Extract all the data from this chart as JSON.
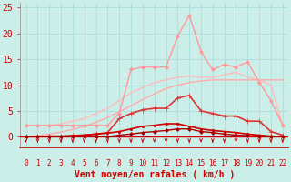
{
  "x": [
    0,
    1,
    2,
    3,
    4,
    5,
    6,
    7,
    8,
    9,
    10,
    11,
    12,
    13,
    14,
    15,
    16,
    17,
    18,
    19,
    20,
    21,
    22
  ],
  "lines": [
    {
      "y": [
        2.2,
        2.2,
        2.2,
        2.5,
        3.0,
        3.5,
        4.5,
        5.5,
        7.0,
        8.5,
        9.5,
        10.5,
        11.0,
        11.5,
        11.8,
        11.5,
        11.5,
        12.0,
        12.5,
        11.5,
        11.0,
        10.0,
        2.2
      ],
      "color": "#ffbbbb",
      "lw": 1.0,
      "marker": null,
      "ms": 0,
      "zorder": 2
    },
    {
      "y": [
        0.0,
        0.2,
        0.5,
        0.9,
        1.4,
        2.0,
        2.8,
        3.7,
        4.8,
        6.0,
        7.2,
        8.3,
        9.3,
        10.0,
        10.5,
        10.8,
        11.0,
        11.0,
        11.0,
        11.0,
        11.0,
        11.0,
        11.0
      ],
      "color": "#ffaaaa",
      "lw": 1.0,
      "marker": null,
      "ms": 0,
      "zorder": 2
    },
    {
      "y": [
        2.2,
        2.2,
        2.2,
        2.2,
        2.2,
        2.2,
        2.2,
        2.2,
        4.5,
        13.0,
        13.5,
        13.5,
        13.5,
        19.5,
        23.5,
        16.5,
        13.0,
        14.0,
        13.5,
        14.5,
        10.5,
        7.0,
        2.2
      ],
      "color": "#ff9999",
      "lw": 1.0,
      "marker": "D",
      "ms": 2.0,
      "zorder": 3
    },
    {
      "y": [
        0.0,
        0.0,
        0.0,
        0.0,
        0.2,
        0.3,
        0.5,
        0.8,
        3.5,
        4.5,
        5.2,
        5.5,
        5.5,
        7.5,
        8.0,
        5.0,
        4.5,
        4.0,
        4.0,
        3.0,
        3.0,
        1.0,
        0.3
      ],
      "color": "#dd3333",
      "lw": 1.2,
      "marker": "+",
      "ms": 4,
      "zorder": 5
    },
    {
      "y": [
        0.0,
        0.0,
        0.1,
        0.1,
        0.2,
        0.3,
        0.5,
        0.7,
        1.0,
        1.5,
        2.0,
        2.2,
        2.5,
        2.5,
        2.0,
        1.5,
        1.2,
        1.0,
        0.8,
        0.5,
        0.3,
        0.1,
        0.0
      ],
      "color": "#cc0000",
      "lw": 1.2,
      "marker": "s",
      "ms": 2.0,
      "zorder": 6
    },
    {
      "y": [
        0.0,
        0.0,
        0.0,
        0.0,
        0.0,
        0.0,
        0.0,
        0.0,
        0.3,
        0.5,
        0.8,
        1.0,
        1.2,
        1.5,
        1.5,
        1.0,
        0.8,
        0.5,
        0.3,
        0.2,
        0.1,
        0.0,
        0.0
      ],
      "color": "#aa0000",
      "lw": 1.0,
      "marker": "D",
      "ms": 2.0,
      "zorder": 7
    }
  ],
  "xlabel": "Vent moyen/en rafales ( km/h )",
  "xlim": [
    -0.5,
    22.5
  ],
  "ylim": [
    -2,
    26
  ],
  "yticks": [
    0,
    5,
    10,
    15,
    20,
    25
  ],
  "xticks": [
    0,
    1,
    2,
    3,
    4,
    5,
    6,
    7,
    8,
    9,
    10,
    11,
    12,
    13,
    14,
    15,
    16,
    17,
    18,
    19,
    20,
    21,
    22
  ],
  "bg_color": "#cceee8",
  "grid_color": "#aadddd",
  "text_color": "#cc0000",
  "hline_color": "#cc0000",
  "xlabel_fontsize": 7.0,
  "ytick_fontsize": 7,
  "xtick_fontsize": 5.5
}
